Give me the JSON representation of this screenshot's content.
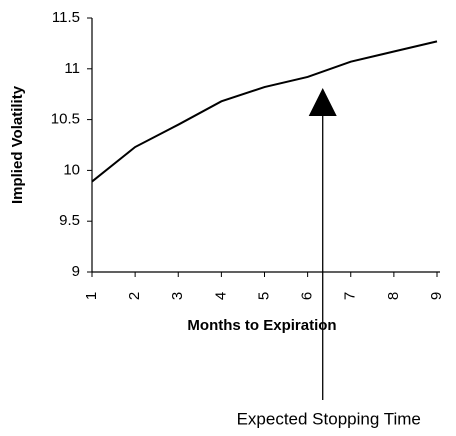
{
  "chart_data": {
    "type": "line",
    "x": [
      1,
      2,
      3,
      4,
      5,
      6,
      7,
      8,
      9
    ],
    "values": [
      9.89,
      10.23,
      10.45,
      10.68,
      10.82,
      10.92,
      11.07,
      11.17,
      11.27
    ],
    "color": "#000000",
    "xlim": [
      1,
      9
    ],
    "xticks": [
      1,
      2,
      3,
      4,
      5,
      6,
      7,
      8,
      9
    ],
    "ylim": [
      9,
      11.5
    ],
    "yticks": [
      9,
      9.5,
      10,
      10.5,
      11,
      11.5
    ],
    "grid": false,
    "x_label": "Months to Expiration",
    "y_label": "Implied Volatility",
    "annotation": {
      "text": "Expected Stopping Time",
      "x": 6.35
    }
  }
}
